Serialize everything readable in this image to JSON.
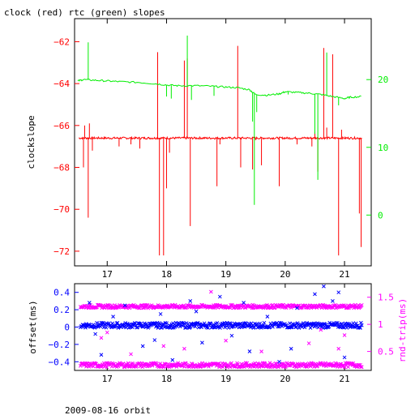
{
  "page": {
    "title": "clock (red) rtc (green) slopes",
    "footer": "2009-08-16 orbit"
  },
  "colors": {
    "clock": "#ff0000",
    "rtc": "#00ee00",
    "offset": "#0000ff",
    "rndtrip": "#ff00ff",
    "axis": "#000000"
  },
  "chart_data": [
    {
      "type": "line",
      "title": "clock (red) rtc (green) slopes",
      "xlabel": "",
      "ylabel": "clockslope",
      "y2label": "",
      "xlim": [
        16.45,
        21.45
      ],
      "ylim": [
        -72.7,
        -60.9
      ],
      "y2lim": [
        -7.5,
        29
      ],
      "xticks": [
        17,
        18,
        19,
        20,
        21
      ],
      "yticks": [
        -62,
        -64,
        -66,
        -68,
        -70,
        -72
      ],
      "y2ticks": [
        0,
        10,
        20
      ],
      "series": [
        {
          "name": "clock (red)",
          "axis": "left",
          "baseline": -66.6,
          "x": [
            16.55,
            16.6,
            16.62,
            16.68,
            16.7,
            16.75,
            17.2,
            17.4,
            17.55,
            17.85,
            17.88,
            17.95,
            18.0,
            18.05,
            18.3,
            18.35,
            18.4,
            18.85,
            18.9,
            19.2,
            19.25,
            19.45,
            19.5,
            19.6,
            19.9,
            20.2,
            20.45,
            20.5,
            20.55,
            20.65,
            20.7,
            20.8,
            20.9,
            20.95,
            21.25,
            21.28
          ],
          "y": [
            -66.6,
            -68.0,
            -66.0,
            -70.4,
            -65.9,
            -67.2,
            -67.0,
            -66.9,
            -67.1,
            -62.5,
            -72.2,
            -72.2,
            -69.0,
            -67.3,
            -62.9,
            -62.8,
            -70.8,
            -68.9,
            -66.9,
            -62.2,
            -68.0,
            -68.1,
            -66.7,
            -67.9,
            -68.9,
            -66.9,
            -67.0,
            -66.3,
            -68.2,
            -62.3,
            -66.1,
            -62.6,
            -72.2,
            -66.2,
            -70.2,
            -71.8
          ]
        },
        {
          "name": "rtc (green)",
          "axis": "right",
          "x": [
            16.5,
            16.6,
            16.8,
            17.0,
            17.2,
            17.5,
            17.8,
            18.0,
            18.2,
            18.5,
            18.8,
            19.0,
            19.2,
            19.4,
            19.5,
            19.7,
            19.9,
            20.0,
            20.2,
            20.4,
            20.6,
            20.8,
            21.0,
            21.1,
            21.3
          ],
          "y": [
            19.8,
            20.0,
            19.9,
            19.8,
            19.7,
            19.6,
            19.4,
            19.2,
            19.1,
            19.1,
            19.0,
            18.9,
            18.8,
            18.5,
            17.8,
            17.7,
            17.9,
            18.2,
            18.1,
            18.0,
            17.8,
            17.5,
            17.2,
            17.4,
            17.5
          ],
          "spikes_x": [
            16.68,
            18.0,
            18.08,
            18.35,
            18.42,
            18.8,
            19.45,
            19.48,
            19.52,
            20.05,
            20.5,
            20.55,
            20.7,
            20.9
          ],
          "spikes_y": [
            25.5,
            17.5,
            17.2,
            26.5,
            17.0,
            17.6,
            13.8,
            1.5,
            15.2,
            17.8,
            12.0,
            5.2,
            24.0,
            16.2
          ]
        }
      ]
    },
    {
      "type": "scatter",
      "title": "",
      "xlabel": "",
      "ylabel": "offset(ms)",
      "y2label": "rnd-trip(ms)",
      "xlim": [
        16.45,
        21.45
      ],
      "ylim": [
        -0.5,
        0.5
      ],
      "y2lim": [
        0.15,
        1.75
      ],
      "xticks": [
        17,
        18,
        19,
        20,
        21
      ],
      "yticks": [
        0.4,
        0.2,
        0,
        -0.2,
        -0.4
      ],
      "y2ticks": [
        0.5,
        1,
        1.5
      ],
      "series": [
        {
          "name": "offset",
          "axis": "left",
          "band_center": 0.02,
          "band_halfwidth": 0.03
        },
        {
          "name": "rnd-trip upper",
          "axis": "right",
          "band_center": 1.33,
          "band_halfwidth": 0.03
        },
        {
          "name": "rnd-trip lower",
          "axis": "right",
          "band_center": 0.25,
          "band_halfwidth": 0.04
        }
      ],
      "outliers": {
        "offset_x": [
          16.7,
          16.9,
          17.3,
          17.6,
          17.9,
          18.1,
          18.4,
          18.6,
          18.9,
          19.1,
          19.4,
          19.7,
          19.9,
          20.2,
          20.5,
          20.65,
          20.8,
          21.0,
          16.8,
          17.1,
          17.8,
          18.5,
          19.3,
          20.1,
          20.9
        ],
        "offset_y": [
          0.28,
          -0.32,
          0.25,
          -0.22,
          0.15,
          -0.38,
          0.3,
          -0.18,
          0.35,
          -0.1,
          -0.28,
          0.12,
          -0.4,
          0.22,
          0.38,
          0.47,
          0.3,
          -0.35,
          -0.08,
          0.12,
          -0.15,
          0.18,
          0.28,
          -0.25,
          0.4
        ],
        "rndtrip_x": [
          16.9,
          17.0,
          17.4,
          17.95,
          18.3,
          18.75,
          19.0,
          19.6,
          20.4,
          20.6,
          20.9,
          21.0
        ],
        "rndtrip_y": [
          0.75,
          0.85,
          0.45,
          0.6,
          0.55,
          1.6,
          0.7,
          0.5,
          0.65,
          0.9,
          0.55,
          0.8
        ]
      }
    }
  ]
}
